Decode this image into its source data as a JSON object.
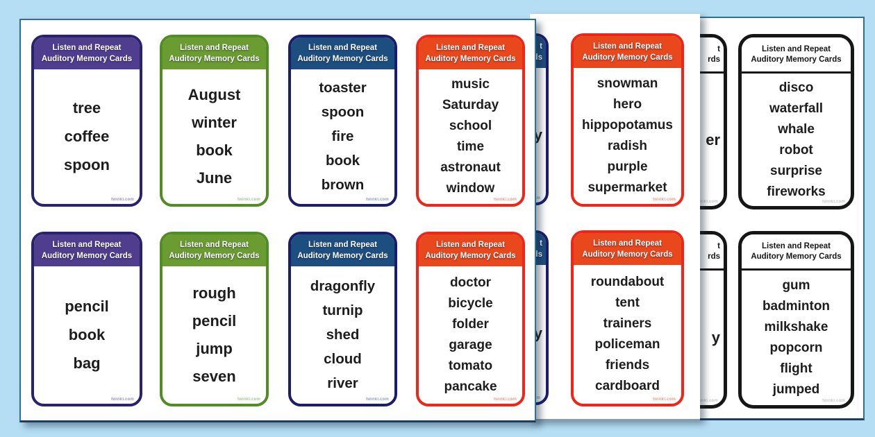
{
  "page_background": "#b5ddf3",
  "card_header": {
    "line1": "Listen and Repeat",
    "line2": "Auditory Memory Cards"
  },
  "watermark": "twinkl.com",
  "themes": {
    "purple": {
      "header_bg": "#4f3e8e",
      "border": "#29226f",
      "header_text": "#ffffff",
      "watermark_color": "#3a3a8c"
    },
    "green": {
      "header_bg": "#6a9c31",
      "border": "#528c24",
      "header_text": "#ffffff",
      "watermark_color": "#5a9a2f"
    },
    "navy": {
      "header_bg": "#1d4e80",
      "border": "#1b1c6e",
      "header_text": "#ffffff",
      "watermark_color": "#334f9a"
    },
    "orange": {
      "header_bg": "#e8481c",
      "border": "#ee2517",
      "header_text": "#ffffff",
      "watermark_color": "#e8481c"
    },
    "black": {
      "header_bg": "#ffffff",
      "border": "#161616",
      "header_text": "#161616",
      "watermark_color": "#999999"
    }
  },
  "pages": [
    {
      "name": "front-left-sheet",
      "cards": [
        {
          "theme": "purple",
          "words": [
            "tree",
            "coffee",
            "spoon"
          ]
        },
        {
          "theme": "green",
          "words": [
            "August",
            "winter",
            "book",
            "June"
          ]
        },
        {
          "theme": "navy",
          "words": [
            "toaster",
            "spoon",
            "fire",
            "book",
            "brown"
          ]
        },
        {
          "theme": "orange",
          "words": [
            "music",
            "Saturday",
            "school",
            "time",
            "astronaut",
            "window"
          ]
        },
        {
          "theme": "purple",
          "words": [
            "pencil",
            "book",
            "bag"
          ]
        },
        {
          "theme": "green",
          "words": [
            "rough",
            "pencil",
            "jump",
            "seven"
          ]
        },
        {
          "theme": "navy",
          "words": [
            "dragonfly",
            "turnip",
            "shed",
            "cloud",
            "river"
          ]
        },
        {
          "theme": "orange",
          "words": [
            "doctor",
            "bicycle",
            "folder",
            "garage",
            "tomato",
            "pancake"
          ]
        }
      ]
    },
    {
      "name": "middle-sheet",
      "cards": [
        {
          "theme": "navy",
          "partial": true,
          "header_fragments": [
            "t",
            "rds"
          ],
          "word_fragments": [
            "y"
          ]
        },
        {
          "theme": "orange",
          "words": [
            "snowman",
            "hero",
            "hippopotamus",
            "radish",
            "purple",
            "supermarket"
          ]
        },
        {
          "theme": "navy",
          "partial": true,
          "header_fragments": [
            "t",
            "rds"
          ],
          "word_fragments": [
            "y"
          ]
        },
        {
          "theme": "orange",
          "words": [
            "roundabout",
            "tent",
            "trainers",
            "policeman",
            "friends",
            "cardboard"
          ]
        }
      ]
    },
    {
      "name": "back-right-sheet",
      "cards": [
        {
          "theme": "black",
          "partial": true,
          "header_fragments": [
            "t",
            "rds"
          ],
          "word_fragments": [
            "er"
          ]
        },
        {
          "theme": "black",
          "words": [
            "disco",
            "waterfall",
            "whale",
            "robot",
            "surprise",
            "fireworks"
          ]
        },
        {
          "theme": "black",
          "partial": true,
          "header_fragments": [
            "t",
            "rds"
          ],
          "word_fragments": [
            "y"
          ]
        },
        {
          "theme": "black",
          "words": [
            "gum",
            "badminton",
            "milkshake",
            "popcorn",
            "flight",
            "jumped"
          ]
        }
      ]
    }
  ]
}
